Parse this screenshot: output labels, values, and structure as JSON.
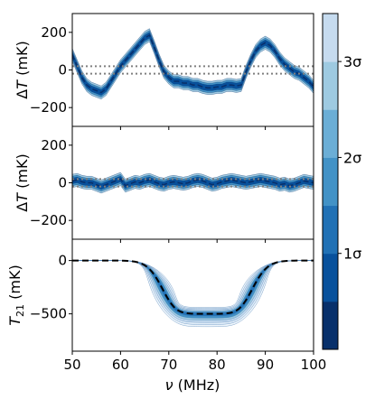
{
  "chart_data": [
    {
      "type": "area",
      "panel": "residuals-with-signal",
      "ylabel": "ΔT (mK)",
      "ylim": [
        -300,
        300
      ],
      "xlim": [
        50,
        100
      ],
      "yticks": [
        {
          "v": 200,
          "label": "200"
        },
        {
          "v": 0,
          "label": "0"
        },
        {
          "v": -200,
          "label": "−200"
        }
      ],
      "reference_lines": [
        20,
        -20
      ],
      "mean": {
        "x": [
          50,
          51,
          52,
          53,
          54,
          55,
          56,
          57,
          58,
          59,
          60,
          61,
          62,
          63,
          64,
          65,
          66,
          67,
          68,
          69,
          70,
          71,
          72,
          73,
          74,
          75,
          76,
          77,
          78,
          79,
          80,
          81,
          82,
          83,
          84,
          85,
          86,
          87,
          88,
          89,
          90,
          91,
          92,
          93,
          94,
          95,
          96,
          97,
          98,
          99,
          100
        ],
        "y": [
          80,
          20,
          -40,
          -80,
          -100,
          -110,
          -120,
          -100,
          -60,
          -20,
          20,
          50,
          80,
          110,
          140,
          170,
          185,
          120,
          50,
          -10,
          -40,
          -60,
          -60,
          -70,
          -70,
          -80,
          -80,
          -90,
          -95,
          -95,
          -90,
          -90,
          -80,
          -80,
          -85,
          -80,
          -10,
          50,
          100,
          130,
          145,
          130,
          100,
          60,
          30,
          10,
          -10,
          -20,
          -40,
          -60,
          -90
        ]
      },
      "band_halfwidth": [
        15,
        25,
        35
      ]
    },
    {
      "type": "area",
      "panel": "residuals",
      "ylabel": "ΔT (mK)",
      "ylim": [
        -300,
        300
      ],
      "xlim": [
        50,
        100
      ],
      "yticks": [
        {
          "v": 200,
          "label": "200"
        },
        {
          "v": 0,
          "label": "0"
        },
        {
          "v": -200,
          "label": "−200"
        }
      ],
      "reference_lines": [
        20,
        -20
      ],
      "mean": {
        "x": [
          50,
          51,
          52,
          53,
          54,
          55,
          56,
          57,
          58,
          59,
          60,
          61,
          62,
          63,
          64,
          65,
          66,
          67,
          68,
          69,
          70,
          71,
          72,
          73,
          74,
          75,
          76,
          77,
          78,
          79,
          80,
          81,
          82,
          83,
          84,
          85,
          86,
          87,
          88,
          89,
          90,
          91,
          92,
          93,
          94,
          95,
          96,
          97,
          98,
          99,
          100
        ],
        "y": [
          10,
          15,
          5,
          0,
          0,
          -10,
          -20,
          -10,
          0,
          10,
          20,
          -15,
          -5,
          5,
          0,
          10,
          15,
          5,
          -5,
          -10,
          0,
          5,
          0,
          -5,
          0,
          10,
          15,
          10,
          0,
          -10,
          -5,
          5,
          10,
          15,
          10,
          5,
          0,
          5,
          10,
          15,
          10,
          5,
          0,
          -10,
          -5,
          -15,
          -10,
          0,
          10,
          5,
          0
        ]
      },
      "band_halfwidth": [
        15,
        25,
        35
      ]
    },
    {
      "type": "area",
      "panel": "signal",
      "xlabel": "ν (MHz)",
      "ylabel": "T21 (mK)",
      "ylim": [
        -850,
        200
      ],
      "xlim": [
        50,
        100
      ],
      "xticks": [
        {
          "v": 50,
          "label": "50"
        },
        {
          "v": 60,
          "label": "60"
        },
        {
          "v": 70,
          "label": "70"
        },
        {
          "v": 80,
          "label": "80"
        },
        {
          "v": 90,
          "label": "90"
        },
        {
          "v": 100,
          "label": "100"
        }
      ],
      "yticks": [
        {
          "v": 0,
          "label": "0"
        },
        {
          "v": -500,
          "label": "−500"
        }
      ],
      "true_signal": {
        "amplitude": -500,
        "center": 78,
        "width": 19,
        "flattening": 7
      },
      "band_lower_extra": [
        20,
        40,
        60,
        80,
        100,
        120
      ],
      "band_upper_extra": [
        10,
        20,
        30,
        40,
        50,
        60
      ]
    }
  ],
  "colorbar": {
    "levels": 7,
    "colors": [
      "#08306b",
      "#08519c",
      "#2171b5",
      "#4292c6",
      "#6baed6",
      "#9ecae1",
      "#c6dbef",
      "#deebf7",
      "#eff6fc"
    ],
    "ticks": [
      {
        "level": 1,
        "label": "1σ"
      },
      {
        "level": 2,
        "label": "2σ"
      },
      {
        "level": 3,
        "label": "3σ"
      }
    ]
  },
  "labels": {
    "xlabel": "ν (MHz)"
  }
}
